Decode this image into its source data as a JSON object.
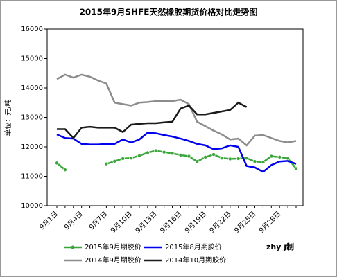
{
  "chart_data": {
    "type": "line",
    "title": "2015年9月SHFE天然橡胶期货价格对比走势图",
    "y_label": "单位：元/吨",
    "note": "zhy j制",
    "categories": [
      "9月1日",
      null,
      null,
      "9月4日",
      null,
      null,
      "9月7日",
      null,
      null,
      "9月10日",
      null,
      null,
      "9月13日",
      null,
      null,
      "9月16日",
      null,
      null,
      "9月19日",
      null,
      null,
      "9月22日",
      null,
      null,
      "9月25日",
      null,
      null,
      "9月28日",
      null,
      null
    ],
    "ylim": [
      10000,
      16000
    ],
    "yticks": [
      10000,
      11000,
      12000,
      13000,
      14000,
      15000,
      16000
    ],
    "legend": "bottom",
    "series": [
      {
        "name": "2015年9月期胶价",
        "color": "#3aa53a",
        "marker": true,
        "values": [
          11450,
          11220,
          null,
          null,
          null,
          null,
          11420,
          11510,
          11600,
          11620,
          11700,
          11800,
          11870,
          11820,
          11780,
          11720,
          11680,
          11500,
          11650,
          11740,
          11620,
          11590,
          11600,
          11620,
          11500,
          11480,
          11680,
          11650,
          11610,
          11260
        ]
      },
      {
        "name": "2015年8月期胶价",
        "color": "#0000ee",
        "marker": false,
        "values": [
          12420,
          12300,
          12280,
          12100,
          12080,
          12080,
          12100,
          12100,
          12250,
          12150,
          12250,
          12480,
          12460,
          12400,
          12350,
          12280,
          12200,
          12100,
          12050,
          11920,
          11950,
          12050,
          12000,
          11350,
          11300,
          11150,
          11380,
          11500,
          11520,
          11420
        ]
      },
      {
        "name": "2014年9月期胶价",
        "color": "#8c8c8c",
        "marker": false,
        "values": [
          14300,
          14450,
          14350,
          14450,
          14380,
          14250,
          14150,
          13500,
          13450,
          13400,
          13500,
          13520,
          13550,
          13560,
          13550,
          13600,
          13450,
          12850,
          12700,
          12550,
          12420,
          12250,
          12280,
          12050,
          12380,
          12400,
          12300,
          12200,
          12150,
          12200
        ]
      },
      {
        "name": "2014年10月期胶价",
        "color": "#1a1a1a",
        "marker": false,
        "values": [
          12600,
          12600,
          12300,
          12650,
          12680,
          12650,
          12650,
          12650,
          12500,
          12750,
          12780,
          12800,
          12800,
          12830,
          12850,
          13300,
          13400,
          13100,
          13100,
          13150,
          13200,
          13250,
          13500,
          13350,
          null,
          null,
          null,
          null,
          null,
          null
        ]
      }
    ]
  }
}
